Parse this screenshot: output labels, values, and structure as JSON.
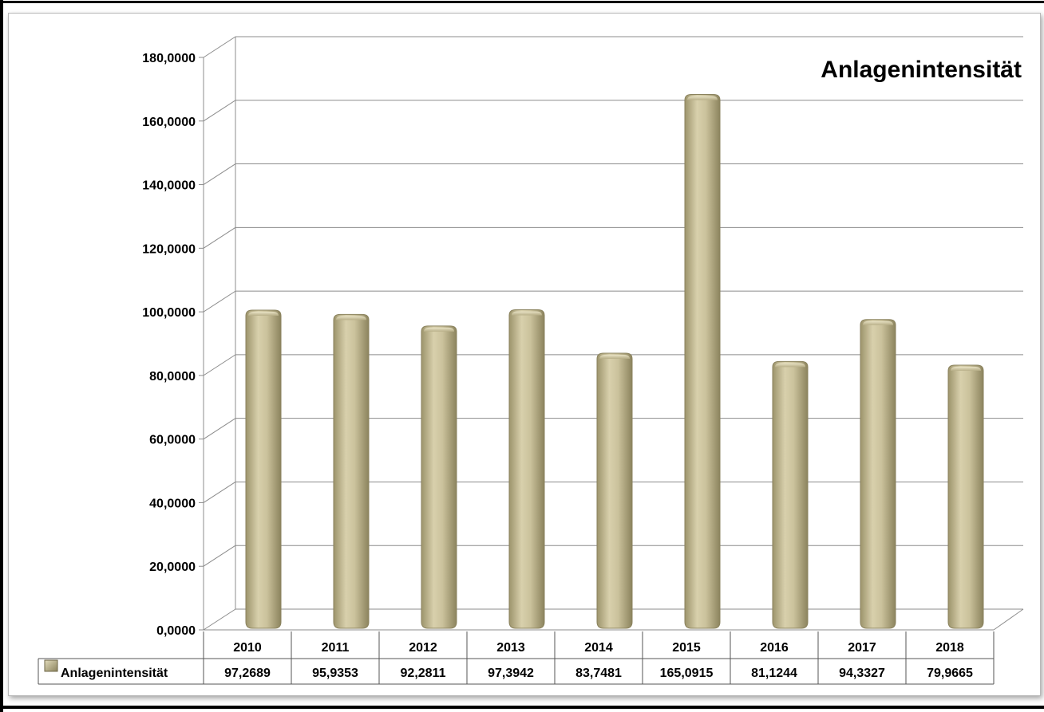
{
  "chart_data": {
    "type": "bar",
    "title": "Anlagenintensität",
    "categories": [
      "2010",
      "2011",
      "2012",
      "2013",
      "2014",
      "2015",
      "2016",
      "2017",
      "2018"
    ],
    "series": [
      {
        "name": "Anlagenintensität",
        "values": [
          97.2689,
          95.9353,
          92.2811,
          97.3942,
          83.7481,
          165.0915,
          81.1244,
          94.3327,
          79.9665
        ],
        "labels": [
          "97,2689",
          "95,9353",
          "92,2811",
          "97,3942",
          "83,7481",
          "165,0915",
          "81,1244",
          "94,3327",
          "79,9665"
        ]
      }
    ],
    "ylim": [
      0,
      180
    ],
    "yticks": [
      "0,0000",
      "20,0000",
      "40,0000",
      "60,0000",
      "80,0000",
      "100,0000",
      "120,0000",
      "140,0000",
      "160,0000",
      "180,0000"
    ],
    "grid": true,
    "legend": "data-table-left",
    "bar_color": "#c9c09a"
  }
}
